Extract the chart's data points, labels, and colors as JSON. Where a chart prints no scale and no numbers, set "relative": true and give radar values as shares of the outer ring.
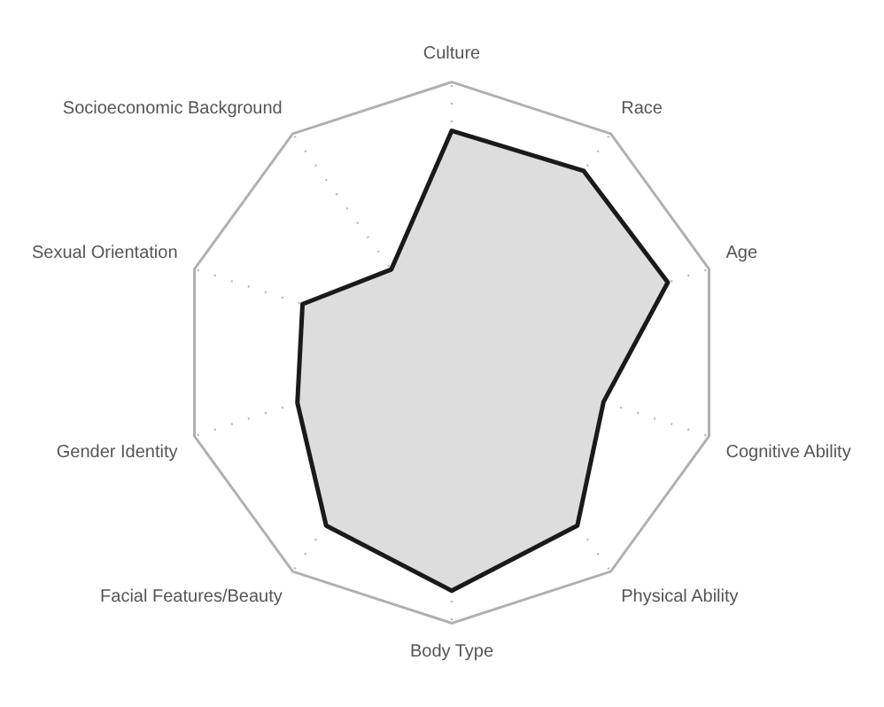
{
  "chart_data": {
    "type": "radar",
    "relative": true,
    "grid": true,
    "legend": false,
    "marker": "none",
    "categories": [
      "Culture",
      "Race",
      "Age",
      "Cognitive Ability",
      "Physical Ability",
      "Body Type",
      "Facial Features/Beauty",
      "Gender Identity",
      "Sexual Orientation",
      "Socioeconomic Background"
    ],
    "series": [
      {
        "color": "#1a1a1a",
        "values": [
          0.82,
          0.83,
          0.84,
          0.59,
          0.79,
          0.88,
          0.79,
          0.6,
          0.58,
          0.38
        ]
      }
    ]
  }
}
